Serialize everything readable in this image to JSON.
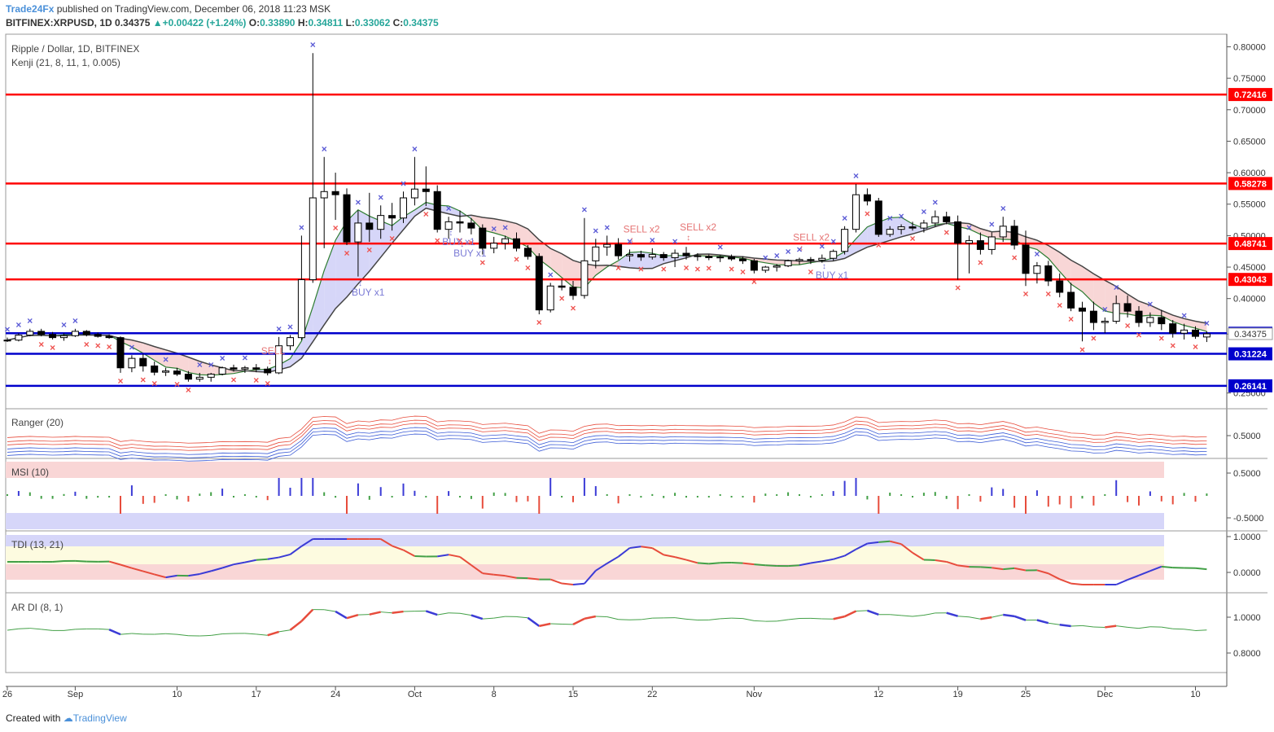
{
  "header": {
    "publisher": "Trade24Fx",
    "published_text": "published on TradingView.com, December 06, 2018 11:23 MSK",
    "symbol": "BITFINEX:XRPUSD, 1D",
    "last": "0.34375",
    "change": "+0.00422 (+1.24%)",
    "open_label": "O:",
    "open": "0.33890",
    "high_label": "H:",
    "high": "0.34811",
    "low_label": "L:",
    "low": "0.33062",
    "close_label": "C:",
    "close": "0.34375"
  },
  "panes": {
    "main_title": "Ripple / Dollar, 1D, BITFINEX",
    "main_indicator": "Kenji (21, 8, 11, 1, 0.005)",
    "ranger": "Ranger (20)",
    "msi": "MSI (10)",
    "tdi": "TDI (13, 21)",
    "ardi": "AR DI (8, 1)"
  },
  "footer": {
    "created_with": "Created with",
    "brand": "TradingView"
  },
  "colors": {
    "up": "#ffffff",
    "down": "#000000",
    "red_level": "#ff0000",
    "blue_level": "#0000cc",
    "sell_x": "#ef5350",
    "buy_x": "#5b5bd6",
    "signal_sell": "#e57373",
    "signal_buy": "#7b7bd6"
  },
  "chart_data": {
    "type": "candlestick",
    "title": "Ripple / Dollar, 1D, BITFINEX",
    "x_tick_labels": [
      "26",
      "Sep",
      "10",
      "17",
      "24",
      "Oct",
      "8",
      "15",
      "22",
      "Nov",
      "12",
      "19",
      "25",
      "Dec",
      "10"
    ],
    "x_tick_day_index": [
      0,
      6,
      15,
      22,
      29,
      36,
      43,
      50,
      57,
      66,
      77,
      84,
      90,
      97,
      105
    ],
    "y_axis_ticks": [
      "0.80000",
      "0.75000",
      "0.70000",
      "0.65000",
      "0.60000",
      "0.55000",
      "0.50000",
      "0.45000",
      "0.40000",
      "0.34375",
      "0.25000"
    ],
    "y_axis_tick_values": [
      0.8,
      0.75,
      0.7,
      0.65,
      0.6,
      0.55,
      0.5,
      0.45,
      0.4,
      0.34375,
      0.25
    ],
    "ylim": [
      0.225,
      0.82
    ],
    "horizontal_levels": [
      {
        "value": 0.72416,
        "label": "0.72416",
        "color": "#ff0000"
      },
      {
        "value": 0.58278,
        "label": "0.58278",
        "color": "#ff0000"
      },
      {
        "value": 0.48741,
        "label": "0.48741",
        "color": "#ff0000"
      },
      {
        "value": 0.43043,
        "label": "0.43043",
        "color": "#ff0000"
      },
      {
        "value": 0.34493,
        "label": "0.34493",
        "color": "#0000cc"
      },
      {
        "value": 0.31224,
        "label": "0.31224",
        "color": "#0000cc"
      },
      {
        "value": 0.26141,
        "label": "0.26141",
        "color": "#0000cc"
      }
    ],
    "current_price_label": "0.34375",
    "candles": [
      [
        0,
        0.333,
        0.338,
        0.331,
        0.334
      ],
      [
        1,
        0.334,
        0.345,
        0.332,
        0.342
      ],
      [
        2,
        0.342,
        0.352,
        0.34,
        0.348
      ],
      [
        3,
        0.348,
        0.352,
        0.34,
        0.343
      ],
      [
        4,
        0.343,
        0.347,
        0.335,
        0.338
      ],
      [
        5,
        0.338,
        0.345,
        0.333,
        0.341
      ],
      [
        6,
        0.341,
        0.352,
        0.339,
        0.348
      ],
      [
        7,
        0.348,
        0.35,
        0.34,
        0.343
      ],
      [
        8,
        0.343,
        0.346,
        0.338,
        0.34
      ],
      [
        9,
        0.34,
        0.343,
        0.336,
        0.338
      ],
      [
        10,
        0.338,
        0.34,
        0.282,
        0.29
      ],
      [
        11,
        0.29,
        0.31,
        0.283,
        0.305
      ],
      [
        12,
        0.305,
        0.312,
        0.284,
        0.293
      ],
      [
        13,
        0.293,
        0.3,
        0.278,
        0.283
      ],
      [
        14,
        0.283,
        0.29,
        0.277,
        0.285
      ],
      [
        15,
        0.285,
        0.29,
        0.277,
        0.28
      ],
      [
        16,
        0.28,
        0.285,
        0.268,
        0.272
      ],
      [
        17,
        0.272,
        0.282,
        0.268,
        0.275
      ],
      [
        18,
        0.275,
        0.282,
        0.268,
        0.28
      ],
      [
        19,
        0.28,
        0.292,
        0.278,
        0.29
      ],
      [
        20,
        0.29,
        0.295,
        0.284,
        0.288
      ],
      [
        21,
        0.288,
        0.293,
        0.282,
        0.29
      ],
      [
        22,
        0.29,
        0.296,
        0.283,
        0.288
      ],
      [
        23,
        0.288,
        0.292,
        0.278,
        0.282
      ],
      [
        24,
        0.282,
        0.339,
        0.28,
        0.325
      ],
      [
        25,
        0.325,
        0.342,
        0.318,
        0.338
      ],
      [
        26,
        0.338,
        0.5,
        0.334,
        0.43
      ],
      [
        27,
        0.43,
        0.79,
        0.425,
        0.56
      ],
      [
        28,
        0.56,
        0.625,
        0.48,
        0.57
      ],
      [
        29,
        0.57,
        0.6,
        0.525,
        0.565
      ],
      [
        30,
        0.565,
        0.575,
        0.485,
        0.49
      ],
      [
        31,
        0.49,
        0.54,
        0.435,
        0.52
      ],
      [
        32,
        0.52,
        0.568,
        0.49,
        0.51
      ],
      [
        33,
        0.51,
        0.548,
        0.495,
        0.532
      ],
      [
        34,
        0.532,
        0.552,
        0.508,
        0.528
      ],
      [
        35,
        0.528,
        0.57,
        0.52,
        0.56
      ],
      [
        36,
        0.56,
        0.625,
        0.548,
        0.574
      ],
      [
        37,
        0.574,
        0.61,
        0.547,
        0.57
      ],
      [
        38,
        0.57,
        0.58,
        0.505,
        0.51
      ],
      [
        39,
        0.51,
        0.53,
        0.495,
        0.522
      ],
      [
        40,
        0.522,
        0.54,
        0.505,
        0.52
      ],
      [
        41,
        0.52,
        0.528,
        0.502,
        0.512
      ],
      [
        42,
        0.512,
        0.518,
        0.47,
        0.48
      ],
      [
        43,
        0.48,
        0.498,
        0.472,
        0.488
      ],
      [
        44,
        0.488,
        0.5,
        0.478,
        0.495
      ],
      [
        45,
        0.495,
        0.505,
        0.475,
        0.48
      ],
      [
        46,
        0.48,
        0.485,
        0.462,
        0.467
      ],
      [
        47,
        0.467,
        0.472,
        0.375,
        0.382
      ],
      [
        48,
        0.382,
        0.425,
        0.378,
        0.42
      ],
      [
        49,
        0.42,
        0.43,
        0.413,
        0.418
      ],
      [
        50,
        0.418,
        0.428,
        0.398,
        0.405
      ],
      [
        51,
        0.405,
        0.528,
        0.4,
        0.46
      ],
      [
        52,
        0.46,
        0.495,
        0.448,
        0.482
      ],
      [
        53,
        0.482,
        0.5,
        0.468,
        0.486
      ],
      [
        54,
        0.486,
        0.496,
        0.462,
        0.468
      ],
      [
        55,
        0.468,
        0.478,
        0.459,
        0.47
      ],
      [
        56,
        0.47,
        0.476,
        0.46,
        0.466
      ],
      [
        57,
        0.466,
        0.48,
        0.462,
        0.47
      ],
      [
        58,
        0.47,
        0.474,
        0.46,
        0.465
      ],
      [
        59,
        0.465,
        0.478,
        0.45,
        0.472
      ],
      [
        60,
        0.472,
        0.482,
        0.462,
        0.468
      ],
      [
        61,
        0.468,
        0.472,
        0.46,
        0.467
      ],
      [
        62,
        0.467,
        0.47,
        0.461,
        0.465
      ],
      [
        63,
        0.465,
        0.469,
        0.458,
        0.466
      ],
      [
        64,
        0.466,
        0.47,
        0.46,
        0.463
      ],
      [
        65,
        0.463,
        0.467,
        0.455,
        0.46
      ],
      [
        66,
        0.46,
        0.463,
        0.44,
        0.445
      ],
      [
        67,
        0.445,
        0.452,
        0.441,
        0.45
      ],
      [
        68,
        0.45,
        0.455,
        0.443,
        0.452
      ],
      [
        69,
        0.452,
        0.462,
        0.45,
        0.46
      ],
      [
        70,
        0.46,
        0.465,
        0.454,
        0.462
      ],
      [
        71,
        0.462,
        0.466,
        0.455,
        0.461
      ],
      [
        72,
        0.461,
        0.47,
        0.457,
        0.464
      ],
      [
        73,
        0.464,
        0.478,
        0.46,
        0.475
      ],
      [
        74,
        0.475,
        0.515,
        0.47,
        0.51
      ],
      [
        75,
        0.51,
        0.582,
        0.505,
        0.565
      ],
      [
        76,
        0.565,
        0.575,
        0.548,
        0.555
      ],
      [
        77,
        0.555,
        0.56,
        0.498,
        0.502
      ],
      [
        78,
        0.502,
        0.515,
        0.498,
        0.51
      ],
      [
        79,
        0.51,
        0.518,
        0.502,
        0.514
      ],
      [
        80,
        0.514,
        0.522,
        0.508,
        0.512
      ],
      [
        81,
        0.512,
        0.525,
        0.505,
        0.52
      ],
      [
        82,
        0.52,
        0.54,
        0.514,
        0.53
      ],
      [
        83,
        0.53,
        0.538,
        0.518,
        0.522
      ],
      [
        84,
        0.522,
        0.532,
        0.43,
        0.488
      ],
      [
        85,
        0.488,
        0.5,
        0.44,
        0.492
      ],
      [
        86,
        0.492,
        0.505,
        0.47,
        0.478
      ],
      [
        87,
        0.478,
        0.505,
        0.47,
        0.498
      ],
      [
        88,
        0.498,
        0.53,
        0.49,
        0.515
      ],
      [
        89,
        0.515,
        0.525,
        0.478,
        0.485
      ],
      [
        90,
        0.485,
        0.508,
        0.42,
        0.44
      ],
      [
        91,
        0.44,
        0.458,
        0.424,
        0.452
      ],
      [
        92,
        0.452,
        0.46,
        0.42,
        0.428
      ],
      [
        93,
        0.428,
        0.44,
        0.402,
        0.41
      ],
      [
        94,
        0.41,
        0.425,
        0.38,
        0.385
      ],
      [
        95,
        0.385,
        0.395,
        0.332,
        0.38
      ],
      [
        96,
        0.38,
        0.395,
        0.35,
        0.362
      ],
      [
        97,
        0.362,
        0.37,
        0.345,
        0.364
      ],
      [
        98,
        0.364,
        0.405,
        0.36,
        0.392
      ],
      [
        99,
        0.392,
        0.405,
        0.37,
        0.38
      ],
      [
        100,
        0.38,
        0.388,
        0.355,
        0.362
      ],
      [
        101,
        0.362,
        0.378,
        0.355,
        0.37
      ],
      [
        102,
        0.37,
        0.382,
        0.35,
        0.36
      ],
      [
        103,
        0.36,
        0.366,
        0.338,
        0.345
      ],
      [
        104,
        0.345,
        0.36,
        0.335,
        0.35
      ],
      [
        105,
        0.35,
        0.356,
        0.336,
        0.34
      ],
      [
        106,
        0.339,
        0.348,
        0.331,
        0.344
      ]
    ],
    "signals": [
      {
        "text": "SELL",
        "day": 22,
        "price": 0.3115,
        "kind": "sell"
      },
      {
        "text": "BUY x1",
        "day": 30,
        "price": 0.405,
        "kind": "buy"
      },
      {
        "text": "BUY x1",
        "day": 38,
        "price": 0.485,
        "kind": "buy"
      },
      {
        "text": "BUY x1",
        "day": 39,
        "price": 0.467,
        "kind": "buy"
      },
      {
        "text": "SELL x2",
        "day": 54,
        "price": 0.505,
        "kind": "sell"
      },
      {
        "text": "SELL x2",
        "day": 59,
        "price": 0.508,
        "kind": "sell"
      },
      {
        "text": "SELL x2",
        "day": 69,
        "price": 0.492,
        "kind": "sell"
      },
      {
        "text": "BUY x1",
        "day": 71,
        "price": 0.432,
        "kind": "buy"
      }
    ],
    "ranger_tick": "0.5000",
    "msi_ticks": [
      "0.5000",
      "-0.5000"
    ],
    "tdi_ticks": [
      "1.0000",
      "0.0000"
    ],
    "ardi_ticks": [
      "1.0000",
      "0.8000"
    ]
  }
}
